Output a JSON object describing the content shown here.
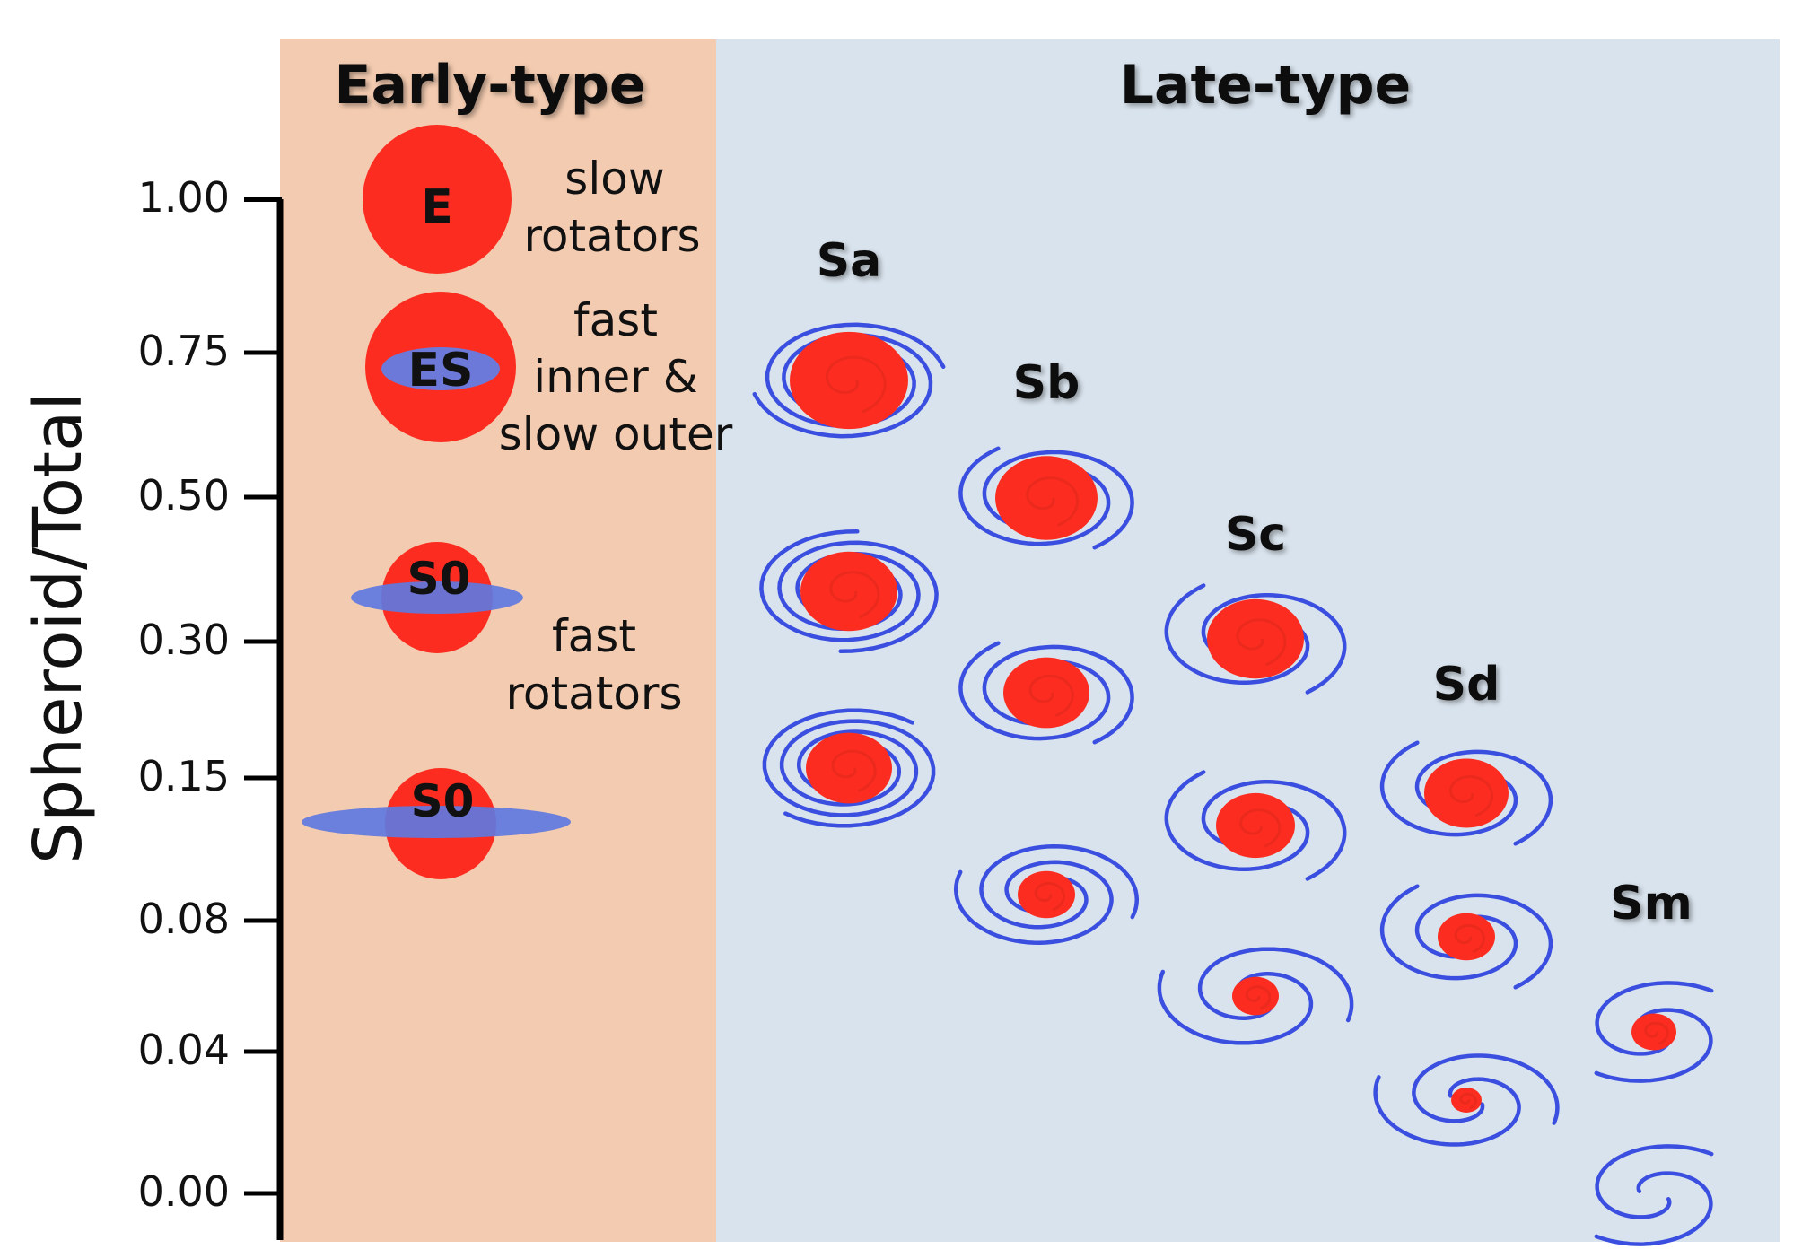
{
  "colors": {
    "early_panel": "#f3cbb0",
    "late_panel": "#d9e3ed",
    "spheroid": "#fc2d20",
    "disk": "#6078e0",
    "spiral": "#3a4ee0",
    "axis": "#000000"
  },
  "y_axis": {
    "label": "Spheroid/Total",
    "ticks": [
      "1.00",
      "0.75",
      "0.50",
      "0.30",
      "0.15",
      "0.08",
      "0.04",
      "0.00"
    ]
  },
  "early": {
    "title": "Early-type",
    "types": [
      "E",
      "ES",
      "S0",
      "S0"
    ],
    "annotations": {
      "slow": [
        "slow",
        "rotators"
      ],
      "fast_inner": [
        "fast",
        "inner &",
        "slow outer"
      ],
      "fast": [
        "fast",
        "rotators"
      ]
    }
  },
  "late": {
    "title": "Late-type",
    "types": [
      "Sa",
      "Sb",
      "Sc",
      "Sd",
      "Sm"
    ]
  }
}
